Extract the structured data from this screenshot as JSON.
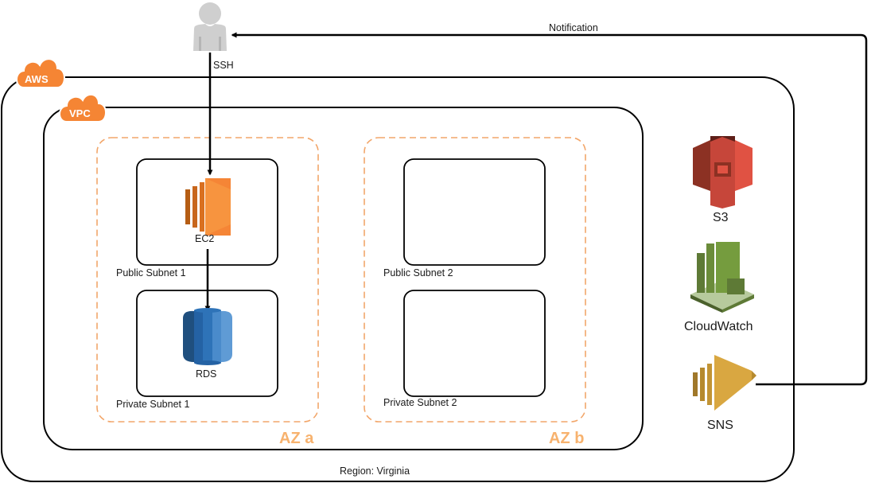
{
  "labels": {
    "aws": "AWS",
    "vpc": "VPC",
    "ssh": "SSH",
    "notification": "Notification",
    "region": "Region: Virginia",
    "az_a": "AZ a",
    "az_b": "AZ b",
    "public_subnet_1": "Public Subnet 1",
    "private_subnet_1": "Private Subnet 1",
    "public_subnet_2": "Public Subnet 2",
    "private_subnet_2": "Private Subnet 2",
    "ec2": "EC2",
    "rds": "RDS",
    "s3": "S3",
    "cloudwatch": "CloudWatch",
    "sns": "SNS"
  },
  "icons": {
    "user": "user-icon",
    "ec2": "ec2-icon",
    "rds": "rds-icon",
    "s3": "s3-icon",
    "cloudwatch": "cloudwatch-icon",
    "sns": "sns-icon",
    "aws": "aws-cloud-tag-icon",
    "vpc": "vpc-cloud-tag-icon"
  },
  "colors": {
    "aws_orange": "#F58534",
    "az_label": "#F7B26E",
    "az_border": "#F2A66A",
    "ec2": "#F58536",
    "rds": "#2E73B8",
    "s3": "#E05243",
    "cloudwatch": "#759C3E",
    "sns": "#D9A741",
    "user": "#CFCFCF"
  }
}
